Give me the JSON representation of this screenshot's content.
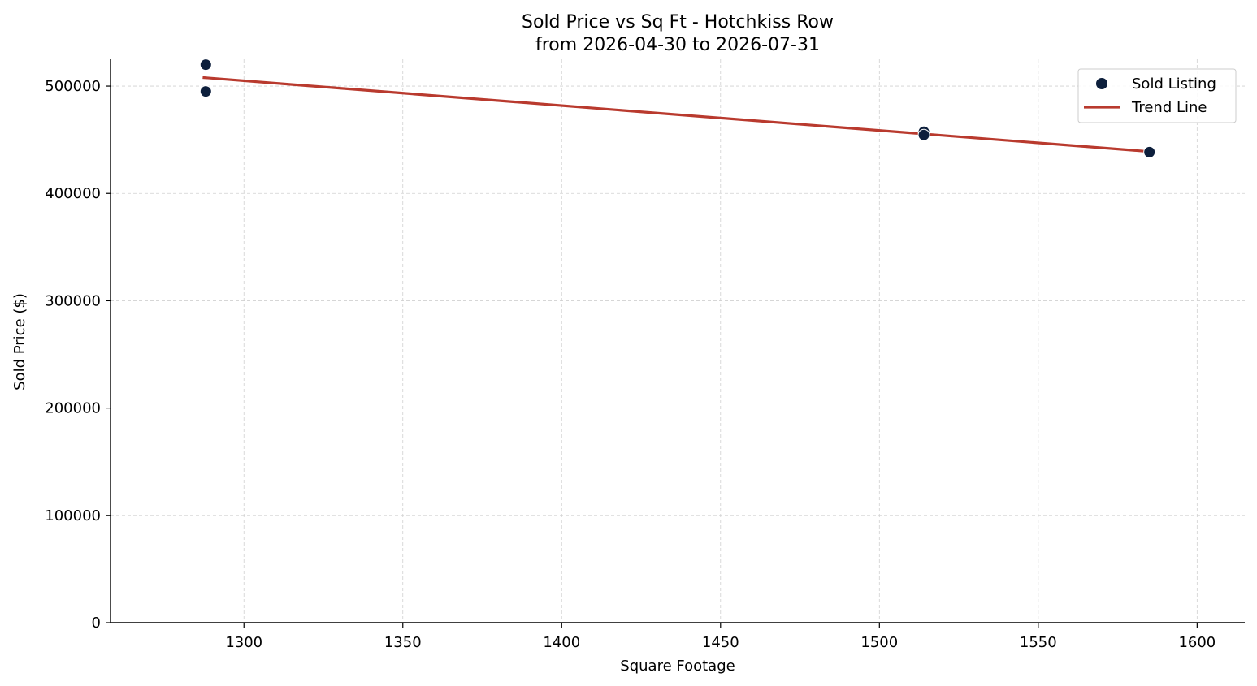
{
  "chart_data": {
    "type": "scatter",
    "title": "Sold Price vs Sq Ft - Hotchkiss Row",
    "subtitle": "from 2026-04-30 to 2026-07-31",
    "xlabel": "Square Footage",
    "ylabel": "Sold Price ($)",
    "xlim": [
      1258,
      1615
    ],
    "ylim": [
      0,
      525000
    ],
    "xticks": [
      1300,
      1350,
      1400,
      1450,
      1500,
      1550,
      1600
    ],
    "yticks": [
      0,
      100000,
      200000,
      300000,
      400000,
      500000
    ],
    "grid": true,
    "legend_position": "top-right",
    "series": [
      {
        "name": "Sold Listing",
        "kind": "scatter",
        "color": "#0d1f3c",
        "points": [
          {
            "x": 1288,
            "y": 520000
          },
          {
            "x": 1288,
            "y": 495000
          },
          {
            "x": 1514,
            "y": 457500
          },
          {
            "x": 1514,
            "y": 454500
          },
          {
            "x": 1585,
            "y": 438500
          }
        ]
      },
      {
        "name": "Trend Line",
        "kind": "line",
        "color": "#b93a2e",
        "points": [
          {
            "x": 1287,
            "y": 508000
          },
          {
            "x": 1585,
            "y": 439000
          }
        ]
      }
    ]
  }
}
